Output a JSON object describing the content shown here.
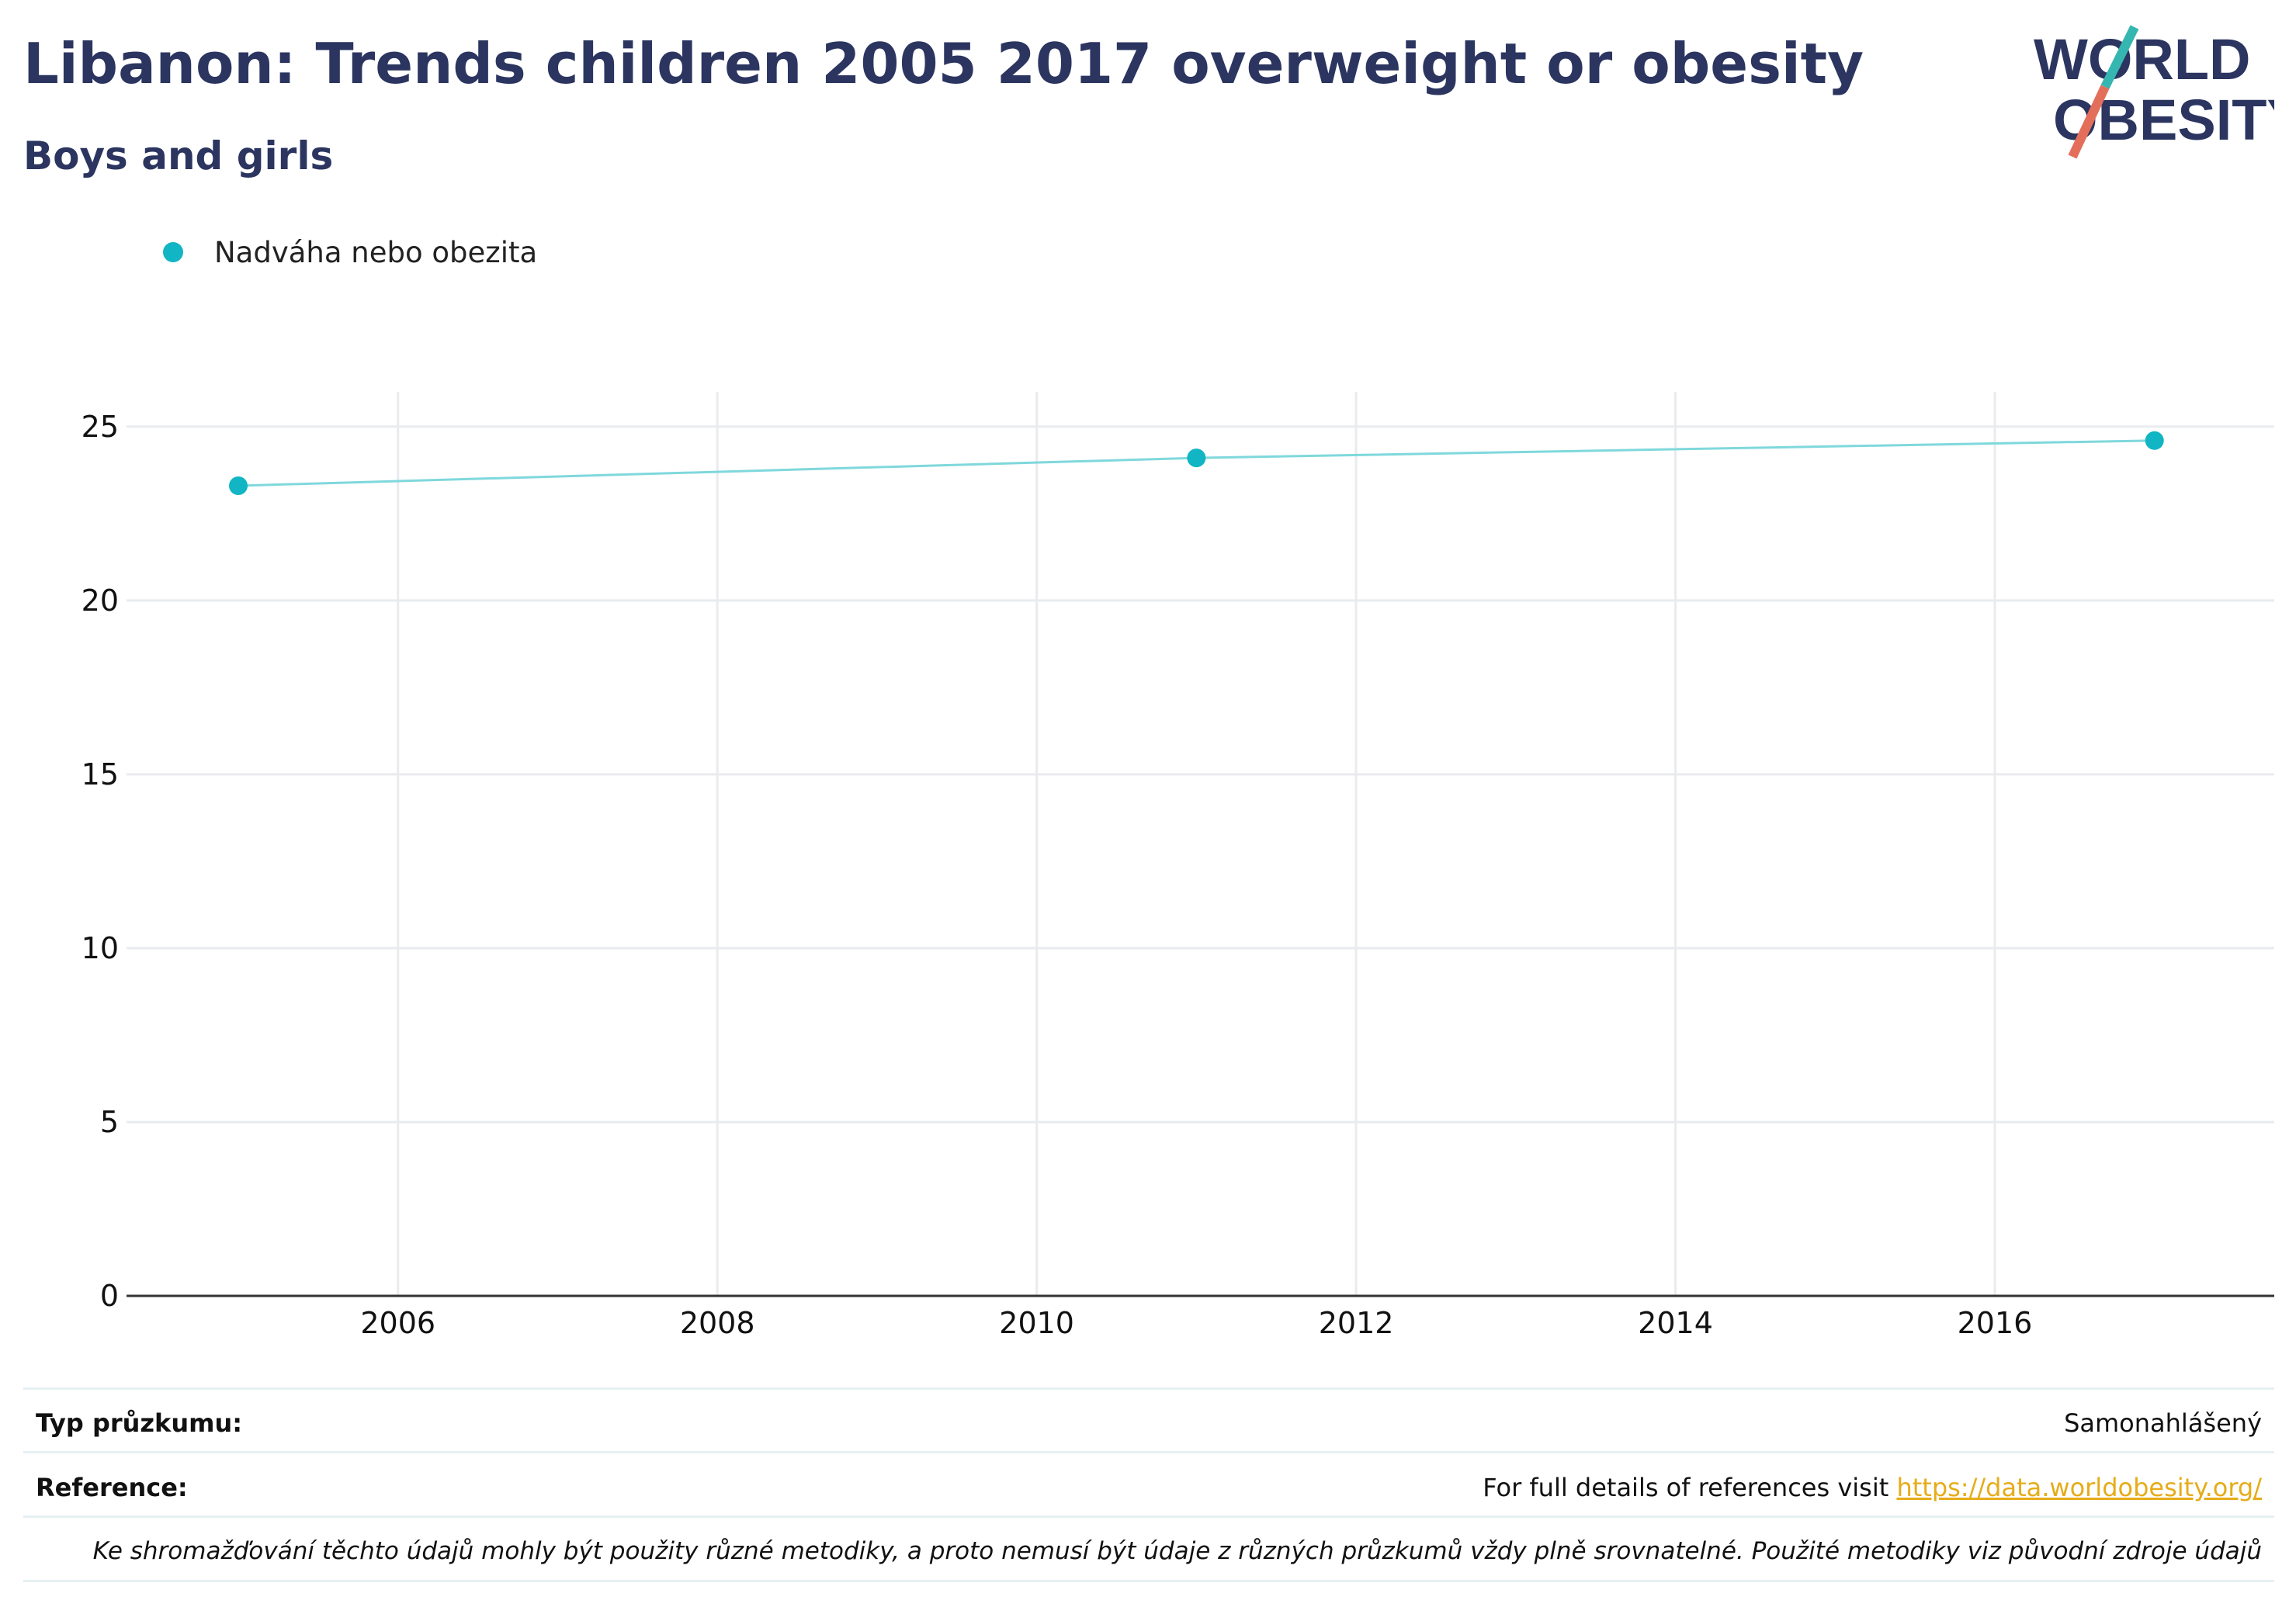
{
  "header": {
    "title": "Libanon: Trends children 2005 2017 overweight or obesity",
    "subtitle": "Boys and girls"
  },
  "logo": {
    "line1": "WORLD",
    "line2": "OBESITY",
    "slash_teal": "#36b6b0",
    "slash_coral": "#e36f5b"
  },
  "colors": {
    "series": "#11b5c3",
    "line": "#7fd8dc",
    "title": "#2b3560",
    "grid": "#e9ebee",
    "axis": "#333333",
    "link": "#e6ac19"
  },
  "chart_data": {
    "type": "line",
    "legend_position": "top-left",
    "grid": true,
    "xlim": [
      2004.3,
      2017.75
    ],
    "ylim": [
      0,
      26
    ],
    "x_ticks": [
      2006,
      2008,
      2010,
      2012,
      2014,
      2016
    ],
    "y_ticks": [
      0,
      5,
      10,
      15,
      20,
      25
    ],
    "series": [
      {
        "name": "Nadváha nebo obezita",
        "x": [
          2005,
          2011,
          2017
        ],
        "values": [
          23.3,
          24.1,
          24.6
        ]
      }
    ]
  },
  "footer": {
    "survey_label": "Typ průzkumu:",
    "survey_value": "Samonahlášený",
    "reference_label": "Reference:",
    "reference_text": "For full details of references visit ",
    "reference_link": "https://data.worldobesity.org/",
    "note": "Ke shromažďování těchto údajů mohly být použity různé metodiky, a proto nemusí být údaje z různých průzkumů vždy plně srovnatelné. Použité metodiky viz původní zdroje údajů"
  }
}
